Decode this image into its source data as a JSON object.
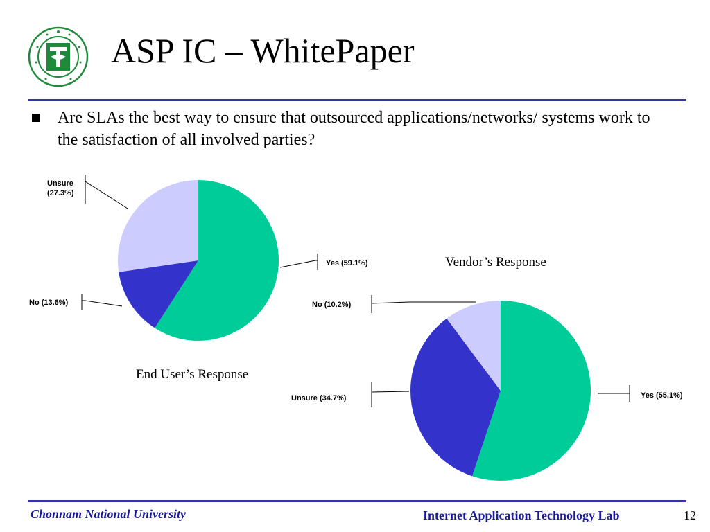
{
  "slide": {
    "title": "ASP IC – WhitePaper",
    "bullet": "Are SLAs the best way to ensure that outsourced applications/networks/ systems work to the satisfaction of all involved parties?",
    "footer_left": "Chonnam National University",
    "footer_right": "Internet Application Technology Lab",
    "page_number": "12",
    "logo_icon": "chonnam-university-seal-icon",
    "accent_color": "#3333aa",
    "footer_color": "#1a1a99"
  },
  "chart_data": [
    {
      "type": "pie",
      "title": "End User’s Response",
      "slices": [
        {
          "label": "Yes (59.1%)",
          "value": 59.1,
          "color": "#00cc99"
        },
        {
          "label": "No (13.6%)",
          "value": 13.6,
          "color": "#3333cc"
        },
        {
          "label": "Unsure (27.3%)",
          "value": 27.3,
          "color": "#ccccff"
        }
      ]
    },
    {
      "type": "pie",
      "title": "Vendor’s Response",
      "slices": [
        {
          "label": "Yes (55.1%)",
          "value": 55.1,
          "color": "#00cc99"
        },
        {
          "label": "Unsure (34.7%)",
          "value": 34.7,
          "color": "#3333cc"
        },
        {
          "label": "No (10.2%)",
          "value": 10.2,
          "color": "#ccccff"
        }
      ]
    }
  ]
}
